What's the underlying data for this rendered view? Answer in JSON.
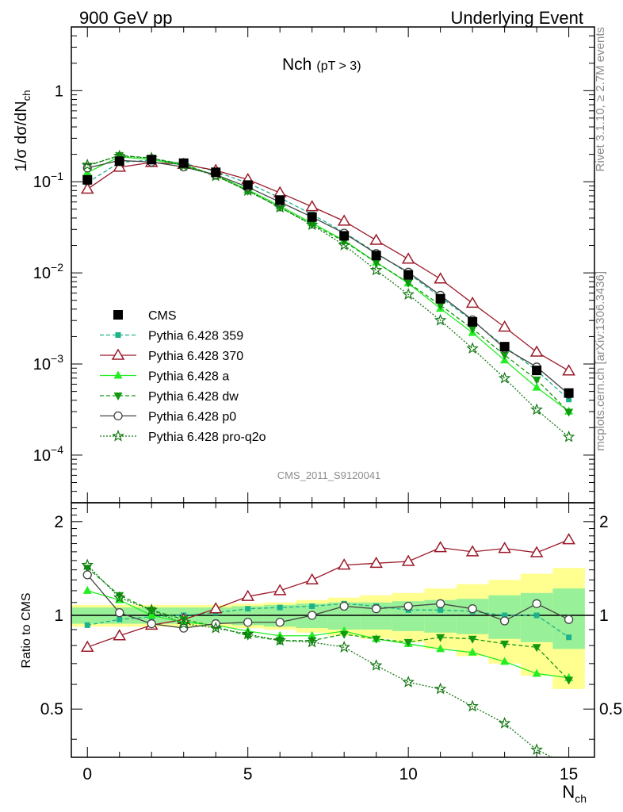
{
  "header": {
    "left_label": "900 GeV pp",
    "right_label": "Underlying Event"
  },
  "side_text": {
    "rivet": "Rivet 3.1.10, ≥ 2.7M events",
    "mcplots": "mcplots.cern.ch [arXiv:1306.3436]"
  },
  "chart_data": {
    "type": "line",
    "title": "Nch",
    "title_suffix": "(pT >  3)",
    "analysis_id": "CMS_2011_S9120041",
    "xlabel": "N",
    "xlabel_sub": "ch",
    "ylabel_top": "1/σ dσ/dN",
    "ylabel_top_sub": "ch",
    "ylabel_bottom": "Ratio to CMS",
    "xlim": [
      -0.5,
      15.8
    ],
    "ylim_top": [
      3e-05,
      5
    ],
    "ylog_top": true,
    "ylim_ratio": [
      0.35,
      2.3
    ],
    "ylog_ratio": true,
    "x_ticks": [
      0,
      5,
      10,
      15
    ],
    "y_ticks_top": [
      {
        "value": 0.0001,
        "base": "10",
        "exp": "−4"
      },
      {
        "value": 0.001,
        "base": "10",
        "exp": "−3"
      },
      {
        "value": 0.01,
        "base": "10",
        "exp": "−2"
      },
      {
        "value": 0.1,
        "base": "10",
        "exp": "−1"
      },
      {
        "value": 1,
        "base": "1",
        "exp": ""
      }
    ],
    "y_ticks_ratio": [
      {
        "value": 0.5,
        "label": "0.5"
      },
      {
        "value": 1,
        "label": "1"
      },
      {
        "value": 2,
        "label": "2"
      }
    ],
    "legend_position": "left-middle",
    "x": [
      0,
      1,
      2,
      3,
      4,
      5,
      6,
      7,
      8,
      9,
      10,
      11,
      12,
      13,
      14,
      15
    ],
    "data": {
      "name": "CMS",
      "color": "#000000",
      "values": [
        0.105,
        0.168,
        0.175,
        0.16,
        0.127,
        0.092,
        0.063,
        0.041,
        0.0255,
        0.0155,
        0.0095,
        0.0052,
        0.0029,
        0.00155,
        0.00085,
        0.00048
      ],
      "band_inner": [
        0.06,
        0.06,
        0.06,
        0.06,
        0.06,
        0.07,
        0.08,
        0.09,
        0.1,
        0.1,
        0.11,
        0.12,
        0.13,
        0.16,
        0.18,
        0.22
      ],
      "band_outer": [
        0.08,
        0.08,
        0.08,
        0.08,
        0.08,
        0.09,
        0.1,
        0.12,
        0.14,
        0.16,
        0.18,
        0.22,
        0.26,
        0.3,
        0.36,
        0.42
      ]
    },
    "series": [
      {
        "name": "Pythia 6.428 359",
        "color": "#1cb28c",
        "marker": "square-small",
        "dash": "5,3",
        "ratio": [
          0.93,
          0.97,
          0.99,
          1.0,
          1.02,
          1.05,
          1.06,
          1.07,
          1.09,
          1.07,
          1.04,
          1.04,
          1.03,
          1.0,
          1.0,
          0.85
        ]
      },
      {
        "name": "Pythia 6.428 370",
        "color": "#9a1a2a",
        "marker": "triangle-open",
        "dash": "",
        "ratio": [
          0.79,
          0.86,
          0.93,
          0.97,
          1.05,
          1.15,
          1.2,
          1.3,
          1.45,
          1.47,
          1.49,
          1.65,
          1.6,
          1.64,
          1.59,
          1.75
        ]
      },
      {
        "name": "Pythia 6.428 a",
        "color": "#22ee22",
        "marker": "triangle-up",
        "dash": "",
        "ratio": [
          1.2,
          1.12,
          1.0,
          0.95,
          0.93,
          0.89,
          0.86,
          0.86,
          0.89,
          0.84,
          0.81,
          0.78,
          0.76,
          0.71,
          0.65,
          0.63
        ]
      },
      {
        "name": "Pythia 6.428 dw",
        "color": "#119911",
        "marker": "triangle-down",
        "dash": "5,3",
        "ratio": [
          1.42,
          1.16,
          1.04,
          0.97,
          0.92,
          0.86,
          0.83,
          0.83,
          0.87,
          0.84,
          0.82,
          0.85,
          0.84,
          0.81,
          0.79,
          0.62
        ]
      },
      {
        "name": "Pythia 6.428 p0",
        "color": "#444444",
        "marker": "circle-open",
        "dash": "",
        "ratio": [
          1.35,
          1.02,
          0.94,
          0.91,
          0.94,
          0.95,
          0.95,
          1.0,
          1.07,
          1.05,
          1.07,
          1.09,
          1.05,
          0.96,
          1.09,
          0.97
        ]
      },
      {
        "name": "Pythia 6.428 pro-q2o",
        "color": "#117711",
        "marker": "star",
        "dash": "2,2",
        "ratio": [
          1.45,
          1.14,
          1.04,
          0.94,
          0.91,
          0.87,
          0.83,
          0.82,
          0.79,
          0.69,
          0.61,
          0.58,
          0.51,
          0.45,
          0.37,
          0.33
        ]
      }
    ]
  }
}
